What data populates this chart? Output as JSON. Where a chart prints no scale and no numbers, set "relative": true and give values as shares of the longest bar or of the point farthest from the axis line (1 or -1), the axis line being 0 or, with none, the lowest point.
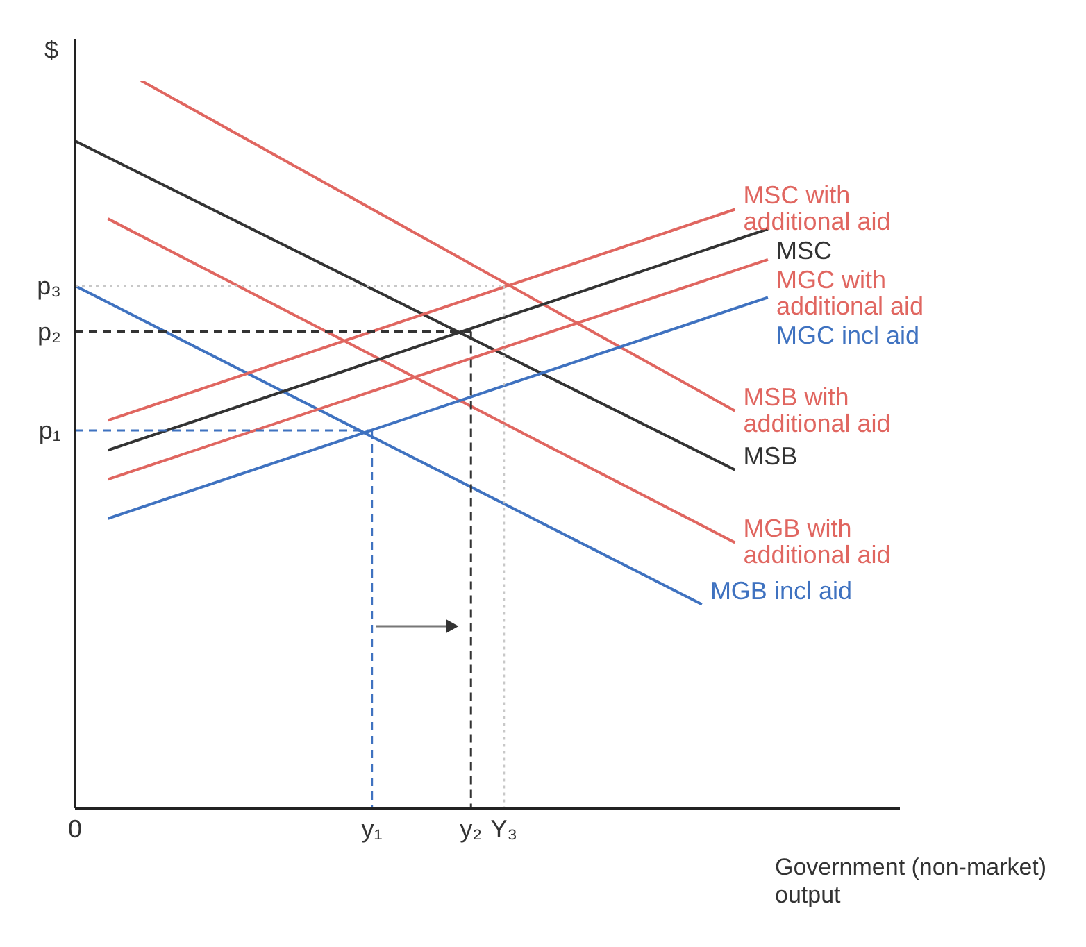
{
  "chart_data": {
    "type": "line",
    "relative": true,
    "ylabel": "$",
    "xlabel": "Government (non-market) output",
    "categories": [
      "0",
      null,
      null,
      null,
      null,
      null,
      null,
      null,
      null,
      "y₁",
      null,
      null,
      "y₂",
      "Y₃",
      null,
      null,
      null,
      null,
      null,
      null,
      null,
      null,
      null,
      null,
      null,
      null
    ],
    "annotations": [
      "p₁",
      "p₂",
      "p₃"
    ],
    "line_style": "solid",
    "marker": "none",
    "series": [
      {
        "name": "MSB with additional aid",
        "color": "#e06660",
        "values": [
          null,
          null,
          1,
          null,
          null,
          null,
          null,
          null,
          null,
          null,
          null,
          null,
          null,
          null,
          null,
          null,
          null,
          null,
          null,
          null,
          0.546,
          null,
          null,
          null,
          null,
          null
        ]
      },
      {
        "name": "MSB",
        "color": "#333333",
        "values": [
          0.917,
          null,
          null,
          null,
          null,
          null,
          null,
          null,
          null,
          null,
          null,
          null,
          null,
          null,
          null,
          null,
          null,
          null,
          null,
          null,
          0.465,
          null,
          null,
          null,
          null,
          null
        ]
      },
      {
        "name": "MGB with additional aid",
        "color": "#e06660",
        "values": [
          null,
          0.81,
          null,
          null,
          null,
          null,
          null,
          null,
          null,
          null,
          null,
          null,
          null,
          null,
          null,
          null,
          null,
          null,
          null,
          null,
          0.365,
          null,
          null,
          null,
          null,
          null
        ]
      },
      {
        "name": "MGB incl aid",
        "color": "#3f72c0",
        "values": [
          0.718,
          null,
          null,
          null,
          null,
          null,
          null,
          null,
          null,
          null,
          null,
          null,
          null,
          null,
          null,
          null,
          null,
          null,
          null,
          0.28,
          null,
          null,
          null,
          null,
          null,
          null
        ]
      },
      {
        "name": "MSC with additional aid",
        "color": "#e06660",
        "values": [
          null,
          0.533,
          null,
          null,
          null,
          null,
          null,
          null,
          null,
          null,
          null,
          null,
          null,
          null,
          null,
          null,
          null,
          null,
          null,
          null,
          0.823,
          null,
          null,
          null,
          null,
          null
        ]
      },
      {
        "name": "MSC",
        "color": "#333333",
        "values": [
          null,
          0.492,
          null,
          null,
          null,
          null,
          null,
          null,
          null,
          null,
          null,
          null,
          null,
          null,
          null,
          null,
          null,
          null,
          null,
          null,
          null,
          0.796,
          null,
          null,
          null,
          null
        ]
      },
      {
        "name": "MGC with additional aid",
        "color": "#e06660",
        "values": [
          null,
          0.452,
          null,
          null,
          null,
          null,
          null,
          null,
          null,
          null,
          null,
          null,
          null,
          null,
          null,
          null,
          null,
          null,
          null,
          null,
          null,
          0.754,
          null,
          null,
          null,
          null
        ]
      },
      {
        "name": "MGC incl aid",
        "color": "#3f72c0",
        "values": [
          null,
          0.398,
          null,
          null,
          null,
          null,
          null,
          null,
          null,
          null,
          null,
          null,
          null,
          null,
          null,
          null,
          null,
          null,
          null,
          null,
          null,
          0.702,
          null,
          null,
          null,
          null
        ]
      },
      {
        "color": "#3f72c0",
        "line_style": "dashed",
        "values": [
          0.519,
          null,
          null,
          null,
          null,
          null,
          null,
          null,
          null,
          0.519,
          null,
          null,
          null,
          null,
          null,
          null,
          null,
          null,
          null,
          null,
          null,
          null,
          null,
          null,
          null,
          null
        ]
      },
      {
        "color": "#3f72c0",
        "line_style": "dashed",
        "x": [
          "y₁",
          "y₁"
        ],
        "values": [
          0.519,
          0
        ]
      },
      {
        "color": "#333333",
        "line_style": "dashed",
        "values": [
          0.655,
          null,
          null,
          null,
          null,
          null,
          null,
          null,
          null,
          null,
          null,
          null,
          0.655,
          null,
          null,
          null,
          null,
          null,
          null,
          null,
          null,
          null,
          null,
          null,
          null,
          null
        ]
      },
      {
        "color": "#333333",
        "line_style": "dashed",
        "x": [
          "y₂",
          "y₂"
        ],
        "values": [
          0.655,
          0
        ]
      },
      {
        "color": "#c8c8c8",
        "line_style": "dotted",
        "values": [
          0.718,
          null,
          null,
          null,
          null,
          null,
          null,
          null,
          null,
          null,
          null,
          null,
          null,
          0.718,
          null,
          null,
          null,
          null,
          null,
          null,
          null,
          null,
          null,
          null,
          null,
          null
        ]
      },
      {
        "color": "#c8c8c8",
        "line_style": "dotted",
        "x": [
          "Y₃",
          "Y₃"
        ],
        "values": [
          0.718,
          0
        ]
      }
    ]
  }
}
